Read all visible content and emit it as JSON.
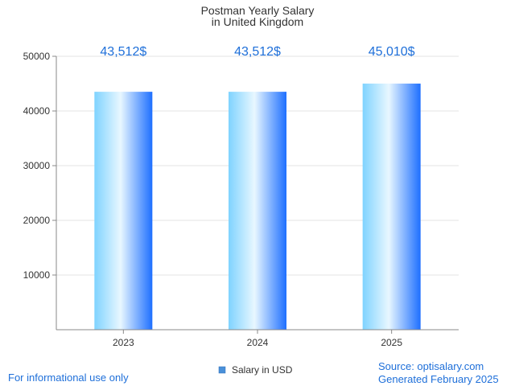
{
  "chart_data": {
    "type": "bar",
    "title_line1": "Postman Yearly Salary",
    "title_line2": "in United Kingdom",
    "categories": [
      "2023",
      "2024",
      "2025"
    ],
    "series": [
      {
        "name": "Salary in USD",
        "values": [
          43512,
          43512,
          45010
        ]
      }
    ],
    "data_labels": [
      "43,512$",
      "43,512$",
      "45,010$"
    ],
    "y_ticks": [
      "10000",
      "20000",
      "30000",
      "40000",
      "50000"
    ],
    "ylim": [
      0,
      50000
    ],
    "grid": true,
    "legend_position": "bottom-center",
    "colors": {
      "bar_light": "#e8f7ff",
      "bar_mid": "#7fd3ff",
      "bar_dark": "#1e6fff",
      "data_label": "#1e6fd9",
      "axis": "#888888",
      "grid": "#e3e3e3",
      "text": "#333333",
      "legend_swatch": "#4a90d9"
    }
  },
  "footer": {
    "disclaimer": "For informational use only",
    "source": "Source: optisalary.com",
    "generated": "Generated February 2025"
  }
}
